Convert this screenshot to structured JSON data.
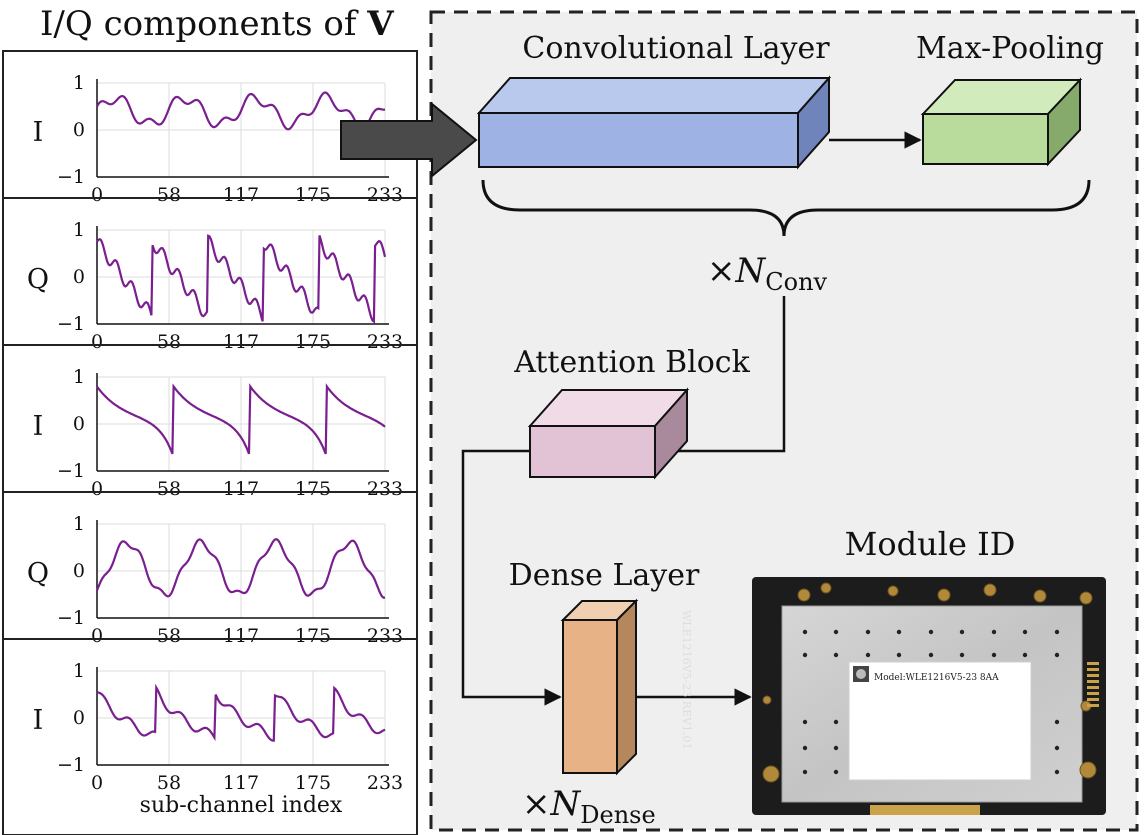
{
  "title": {
    "prefix": "I/Q components of ",
    "symbol": "V"
  },
  "plots": {
    "x_ticks": [
      "0",
      "58",
      "117",
      "175",
      "233"
    ],
    "y_ticks": [
      "1",
      "0",
      "−1"
    ],
    "x_axis_label": "sub-channel index",
    "panels": [
      {
        "component": "I"
      },
      {
        "component": "Q"
      },
      {
        "component": "I"
      },
      {
        "component": "Q"
      },
      {
        "component": "I"
      }
    ],
    "line_color": "#7a1f8f"
  },
  "blocks": {
    "conv": {
      "label": "Convolutional Layer",
      "color": "#9eb3e3"
    },
    "pool": {
      "label": "Max-Pooling",
      "color": "#b9dc9c"
    },
    "attention": {
      "label": "Attention Block",
      "color": "#e2c3d6"
    },
    "dense": {
      "label": "Dense Layer",
      "color": "#e7b386"
    },
    "module": {
      "label": "Module ID"
    }
  },
  "repeat": {
    "conv_symbol": "×N",
    "conv_subscript": "Conv",
    "dense_symbol": "×N",
    "dense_subscript": "Dense"
  },
  "module_card": {
    "model_text": "Model:WLE1216V5-23  8AA",
    "side_text": "WLE1216V5-23 REV1.01"
  }
}
